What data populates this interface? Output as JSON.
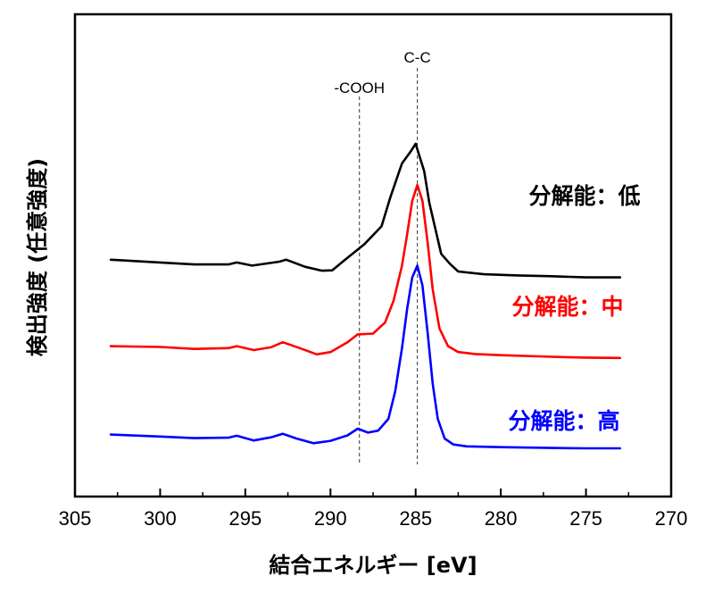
{
  "chart_data": {
    "type": "line",
    "xlabel": "結合エネルギー [eV]",
    "ylabel": "検出強度 (任意強度)",
    "xlim": [
      305,
      270
    ],
    "x_reversed": true,
    "ylim": [
      0,
      1
    ],
    "y_ticks_shown": false,
    "x_ticks": [
      "305",
      "300",
      "295",
      "290",
      "285",
      "280",
      "275",
      "270"
    ],
    "annotations": [
      {
        "label": "-COOH",
        "x": 288.3,
        "style": "dashed vertical line"
      },
      {
        "label": "C-C",
        "x": 284.9,
        "style": "dashed vertical line"
      }
    ],
    "series": [
      {
        "name": "分解能：低",
        "color": "#000000",
        "x": [
          302.9,
          300,
          298,
          296,
          295.5,
          294.6,
          293,
          292.6,
          291.5,
          290.5,
          289.9,
          289,
          288,
          287,
          286.5,
          285.8,
          285.3,
          285.0,
          284.5,
          284.2,
          283.5,
          283,
          282.5,
          281,
          279,
          277,
          275,
          273
        ],
        "y": [
          0.555,
          0.548,
          0.543,
          0.543,
          0.548,
          0.54,
          0.55,
          0.555,
          0.537,
          0.527,
          0.528,
          0.56,
          0.595,
          0.64,
          0.712,
          0.8,
          0.83,
          0.85,
          0.78,
          0.7,
          0.57,
          0.545,
          0.525,
          0.518,
          0.515,
          0.513,
          0.51,
          0.51
        ]
      },
      {
        "name": "分解能：中",
        "color": "#ff0000",
        "x": [
          302.9,
          300,
          298,
          296,
          295.5,
          294.5,
          293.5,
          292.8,
          291.8,
          290.8,
          290,
          289,
          288.4,
          287.5,
          286.8,
          286.3,
          285.8,
          285.5,
          285.2,
          284.9,
          284.6,
          284.3,
          284.0,
          283.6,
          283.1,
          282.5,
          281.5,
          280,
          277,
          275,
          273
        ],
        "y": [
          0.335,
          0.333,
          0.328,
          0.33,
          0.335,
          0.325,
          0.332,
          0.345,
          0.33,
          0.314,
          0.32,
          0.345,
          0.365,
          0.367,
          0.395,
          0.45,
          0.54,
          0.62,
          0.705,
          0.745,
          0.705,
          0.6,
          0.48,
          0.38,
          0.335,
          0.32,
          0.315,
          0.312,
          0.308,
          0.306,
          0.305
        ]
      },
      {
        "name": "分解能：高",
        "color": "#0000ff",
        "x": [
          302.9,
          300,
          298,
          296,
          295.5,
          294.5,
          293.5,
          292.8,
          292,
          291,
          290,
          289,
          288.4,
          287.8,
          287.2,
          286.6,
          286.2,
          285.8,
          285.5,
          285.2,
          284.9,
          284.6,
          284.3,
          284.0,
          283.7,
          283.3,
          282.8,
          282,
          280,
          277,
          275,
          273
        ],
        "y": [
          0.11,
          0.105,
          0.101,
          0.102,
          0.107,
          0.095,
          0.103,
          0.112,
          0.1,
          0.088,
          0.094,
          0.108,
          0.125,
          0.115,
          0.12,
          0.15,
          0.22,
          0.33,
          0.43,
          0.51,
          0.54,
          0.49,
          0.37,
          0.24,
          0.15,
          0.1,
          0.085,
          0.08,
          0.078,
          0.076,
          0.075,
          0.075
        ]
      }
    ]
  }
}
